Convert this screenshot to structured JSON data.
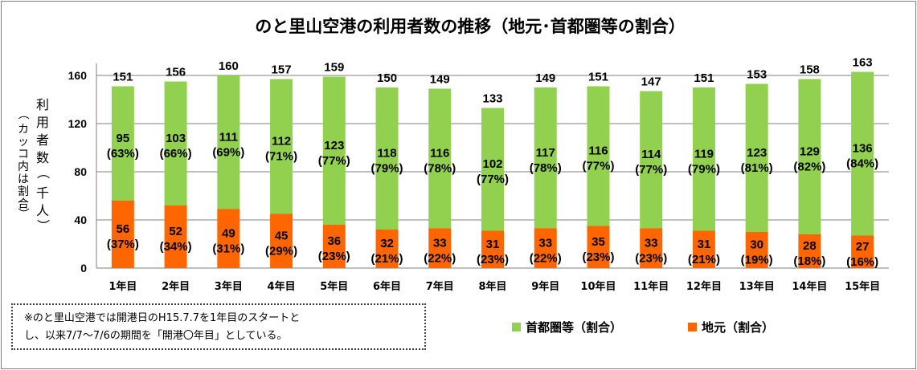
{
  "chart_data": {
    "type": "bar",
    "stacked": true,
    "title": "のと里山空港の利用者数の推移（地元･首都圏等の割合）",
    "ylabel": "利用者数（千人）",
    "ylabel_sub": "（カッコ内は割合）",
    "ylim": [
      0,
      170
    ],
    "yticks": [
      0,
      40,
      80,
      120,
      160
    ],
    "grid": true,
    "legend_position": "bottom-right",
    "categories": [
      "1年目",
      "2年目",
      "3年目",
      "4年目",
      "5年目",
      "6年目",
      "7年目",
      "8年目",
      "9年目",
      "10年目",
      "11年目",
      "12年目",
      "13年目",
      "14年目",
      "15年目"
    ],
    "totals": [
      151,
      156,
      160,
      157,
      159,
      150,
      149,
      133,
      149,
      151,
      147,
      151,
      153,
      158,
      163
    ],
    "series": [
      {
        "name": "地元（割合）",
        "color": "#ff6600",
        "values": [
          56,
          52,
          49,
          45,
          36,
          32,
          33,
          31,
          33,
          35,
          33,
          31,
          30,
          28,
          27
        ],
        "shares": [
          "(37%)",
          "(34%)",
          "(31%)",
          "(29%)",
          "(23%)",
          "(21%)",
          "(22%)",
          "(23%)",
          "(22%)",
          "(23%)",
          "(23%)",
          "(21%)",
          "(19%)",
          "(18%)",
          "(16%)"
        ]
      },
      {
        "name": "首都圏等（割合）",
        "color": "#92d050",
        "values": [
          95,
          103,
          111,
          112,
          123,
          118,
          116,
          102,
          117,
          116,
          114,
          119,
          123,
          129,
          136
        ],
        "shares": [
          "(63%)",
          "(66%)",
          "(69%)",
          "(71%)",
          "(77%)",
          "(79%)",
          "(78%)",
          "(77%)",
          "(78%)",
          "(77%)",
          "(77%)",
          "(79%)",
          "(81%)",
          "(82%)",
          "(84%)"
        ]
      }
    ]
  },
  "note": {
    "line1": "※のと里山空港では開港日のH15.7.7を1年目のスタートと",
    "line2": "し、以来7/7～7/6の期間を「開港〇年目」としている。"
  }
}
